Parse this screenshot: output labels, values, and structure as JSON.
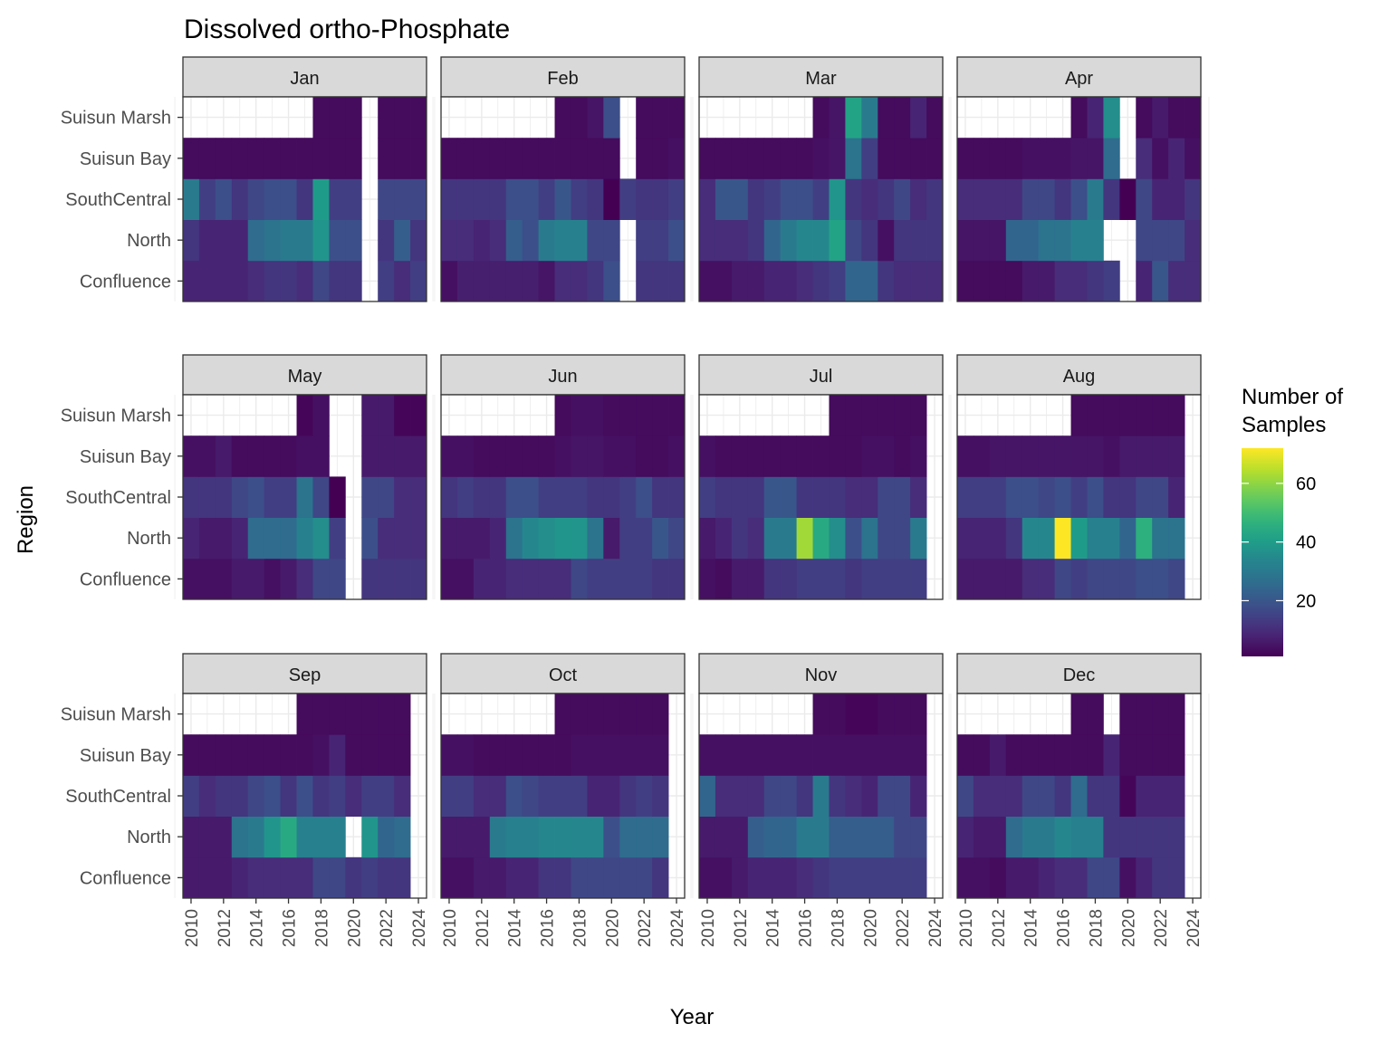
{
  "chart_data": {
    "type": "heatmap",
    "title": "Dissolved ortho-Phosphate",
    "xlabel": "Year",
    "ylabel": "Region",
    "x_ticks": [
      2010,
      2012,
      2014,
      2016,
      2018,
      2020,
      2022,
      2024
    ],
    "xlim": [
      2009.5,
      2024.5
    ],
    "regions": [
      "Confluence",
      "North",
      "SouthCentral",
      "Suisun Bay",
      "Suisun Marsh"
    ],
    "legend": {
      "title_lines": [
        "Number of",
        "Samples"
      ],
      "ticks": [
        20,
        40,
        60
      ],
      "range": [
        1,
        72
      ],
      "colormap": "viridis",
      "placement": "right"
    },
    "grid": true,
    "facets": [
      {
        "label": "Jan",
        "start_year": 2010,
        "rows": {
          "Suisun Marsh": [
            null,
            null,
            null,
            null,
            null,
            null,
            null,
            null,
            3,
            3,
            3,
            null,
            3,
            3,
            3
          ],
          "Suisun Bay": [
            3,
            3,
            3,
            3,
            3,
            3,
            3,
            3,
            3,
            3,
            3,
            null,
            3,
            3,
            3
          ],
          "SouthCentral": [
            30,
            14,
            18,
            12,
            16,
            18,
            18,
            12,
            40,
            14,
            14,
            null,
            16,
            16,
            16
          ],
          "North": [
            12,
            8,
            8,
            8,
            26,
            28,
            30,
            30,
            38,
            18,
            18,
            null,
            12,
            22,
            12
          ],
          "Confluence": [
            8,
            8,
            8,
            8,
            10,
            12,
            12,
            10,
            16,
            12,
            12,
            null,
            14,
            10,
            14
          ]
        }
      },
      {
        "label": "Feb",
        "start_year": 2010,
        "rows": {
          "Suisun Marsh": [
            null,
            null,
            null,
            null,
            null,
            null,
            null,
            3,
            3,
            5,
            18,
            null,
            3,
            3,
            3
          ],
          "Suisun Bay": [
            3,
            3,
            3,
            3,
            3,
            3,
            3,
            3,
            3,
            3,
            3,
            null,
            3,
            3,
            4
          ],
          "SouthCentral": [
            12,
            12,
            12,
            12,
            18,
            18,
            14,
            20,
            14,
            12,
            1,
            14,
            12,
            12,
            14
          ],
          "North": [
            10,
            10,
            8,
            10,
            22,
            18,
            30,
            32,
            32,
            16,
            16,
            null,
            14,
            14,
            18
          ],
          "Confluence": [
            4,
            7,
            7,
            7,
            7,
            7,
            5,
            10,
            10,
            12,
            18,
            null,
            12,
            12,
            12
          ]
        }
      },
      {
        "label": "Mar",
        "start_year": 2010,
        "rows": {
          "Suisun Marsh": [
            null,
            null,
            null,
            null,
            null,
            null,
            null,
            3,
            5,
            42,
            30,
            3,
            3,
            8,
            3
          ],
          "Suisun Bay": [
            3,
            3,
            3,
            3,
            3,
            3,
            3,
            4,
            5,
            28,
            14,
            3,
            3,
            3,
            3
          ],
          "SouthCentral": [
            10,
            20,
            20,
            12,
            14,
            18,
            18,
            14,
            38,
            12,
            10,
            12,
            16,
            10,
            12
          ],
          "North": [
            10,
            10,
            10,
            12,
            24,
            30,
            34,
            34,
            42,
            16,
            12,
            4,
            12,
            12,
            12
          ],
          "Confluence": [
            4,
            4,
            6,
            6,
            8,
            8,
            10,
            12,
            14,
            24,
            24,
            12,
            10,
            10,
            10
          ]
        }
      },
      {
        "label": "Apr",
        "start_year": 2010,
        "rows": {
          "Suisun Marsh": [
            null,
            null,
            null,
            null,
            null,
            null,
            null,
            3,
            8,
            36,
            null,
            3,
            6,
            3,
            3
          ],
          "Suisun Bay": [
            3,
            3,
            3,
            3,
            4,
            4,
            4,
            5,
            5,
            26,
            null,
            10,
            4,
            8,
            4
          ],
          "SouthCentral": [
            10,
            10,
            10,
            10,
            16,
            16,
            12,
            18,
            30,
            12,
            1,
            16,
            8,
            8,
            12
          ],
          "North": [
            5,
            5,
            5,
            24,
            24,
            28,
            28,
            32,
            32,
            null,
            null,
            16,
            16,
            16,
            10
          ],
          "Confluence": [
            3,
            3,
            3,
            3,
            6,
            6,
            10,
            10,
            12,
            14,
            null,
            8,
            20,
            10,
            10
          ]
        }
      },
      {
        "label": "May",
        "start_year": 2010,
        "rows": {
          "Suisun Marsh": [
            null,
            null,
            null,
            null,
            null,
            null,
            null,
            2,
            4,
            null,
            null,
            6,
            6,
            2,
            2
          ],
          "Suisun Bay": [
            4,
            4,
            6,
            3,
            3,
            3,
            3,
            4,
            4,
            null,
            null,
            6,
            6,
            6,
            6
          ],
          "SouthCentral": [
            12,
            12,
            12,
            16,
            18,
            14,
            14,
            28,
            16,
            1,
            null,
            16,
            16,
            10,
            10
          ],
          "North": [
            8,
            6,
            6,
            8,
            26,
            26,
            26,
            32,
            36,
            14,
            null,
            18,
            10,
            10,
            10
          ],
          "Confluence": [
            4,
            4,
            4,
            6,
            6,
            4,
            6,
            10,
            16,
            16,
            null,
            12,
            12,
            12,
            12
          ]
        }
      },
      {
        "label": "Jun",
        "start_year": 2010,
        "rows": {
          "Suisun Marsh": [
            null,
            null,
            null,
            null,
            null,
            null,
            null,
            3,
            4,
            4,
            3,
            3,
            3,
            3,
            3
          ],
          "Suisun Bay": [
            4,
            4,
            3,
            3,
            3,
            3,
            3,
            4,
            5,
            5,
            4,
            4,
            3,
            3,
            4
          ],
          "SouthCentral": [
            12,
            14,
            12,
            12,
            18,
            18,
            14,
            14,
            14,
            12,
            12,
            14,
            18,
            12,
            12
          ],
          "North": [
            6,
            6,
            6,
            8,
            28,
            34,
            36,
            38,
            38,
            28,
            6,
            14,
            14,
            20,
            16
          ],
          "Confluence": [
            4,
            4,
            8,
            8,
            10,
            10,
            10,
            10,
            16,
            14,
            14,
            14,
            14,
            12,
            12
          ]
        }
      },
      {
        "label": "Jul",
        "start_year": 2010,
        "rows": {
          "Suisun Marsh": [
            null,
            null,
            null,
            null,
            null,
            null,
            null,
            null,
            3,
            3,
            3,
            3,
            3,
            3,
            null
          ],
          "Suisun Bay": [
            4,
            3,
            3,
            3,
            3,
            3,
            3,
            3,
            3,
            3,
            4,
            4,
            3,
            4,
            null
          ],
          "SouthCentral": [
            14,
            12,
            12,
            12,
            20,
            20,
            12,
            12,
            12,
            10,
            10,
            16,
            16,
            10,
            null
          ],
          "North": [
            6,
            8,
            12,
            10,
            30,
            30,
            62,
            44,
            36,
            18,
            28,
            16,
            16,
            30,
            null
          ],
          "Confluence": [
            4,
            3,
            6,
            6,
            12,
            12,
            14,
            14,
            14,
            12,
            14,
            14,
            14,
            14,
            null
          ]
        }
      },
      {
        "label": "Aug",
        "start_year": 2010,
        "rows": {
          "Suisun Marsh": [
            null,
            null,
            null,
            null,
            null,
            null,
            null,
            3,
            3,
            3,
            3,
            3,
            3,
            3,
            null
          ],
          "Suisun Bay": [
            4,
            4,
            5,
            5,
            5,
            5,
            5,
            5,
            5,
            4,
            6,
            6,
            6,
            6,
            null
          ],
          "SouthCentral": [
            14,
            14,
            14,
            18,
            18,
            16,
            18,
            14,
            18,
            12,
            12,
            16,
            16,
            8,
            null
          ],
          "North": [
            8,
            8,
            8,
            12,
            34,
            34,
            72,
            40,
            32,
            32,
            24,
            46,
            28,
            28,
            null
          ],
          "Confluence": [
            6,
            6,
            6,
            6,
            10,
            10,
            16,
            14,
            16,
            16,
            16,
            18,
            18,
            16,
            null
          ]
        }
      },
      {
        "label": "Sep",
        "start_year": 2010,
        "rows": {
          "Suisun Marsh": [
            null,
            null,
            null,
            null,
            null,
            null,
            null,
            3,
            3,
            3,
            3,
            3,
            3,
            3,
            null
          ],
          "Suisun Bay": [
            3,
            3,
            3,
            3,
            3,
            3,
            3,
            3,
            4,
            8,
            3,
            3,
            3,
            3,
            null
          ],
          "SouthCentral": [
            14,
            10,
            12,
            12,
            16,
            18,
            12,
            18,
            12,
            14,
            10,
            14,
            14,
            10,
            null
          ],
          "North": [
            6,
            6,
            6,
            28,
            30,
            38,
            44,
            32,
            32,
            32,
            null,
            38,
            24,
            26,
            null
          ],
          "Confluence": [
            6,
            6,
            6,
            8,
            10,
            10,
            10,
            10,
            16,
            16,
            12,
            14,
            12,
            12,
            null
          ]
        }
      },
      {
        "label": "Oct",
        "start_year": 2010,
        "rows": {
          "Suisun Marsh": [
            null,
            null,
            null,
            null,
            null,
            null,
            null,
            3,
            3,
            3,
            3,
            3,
            3,
            3,
            null
          ],
          "Suisun Bay": [
            4,
            4,
            3,
            3,
            3,
            3,
            3,
            3,
            4,
            4,
            4,
            4,
            4,
            4,
            null
          ],
          "SouthCentral": [
            14,
            14,
            10,
            10,
            18,
            16,
            14,
            14,
            14,
            8,
            8,
            12,
            14,
            12,
            null
          ],
          "North": [
            6,
            6,
            6,
            30,
            32,
            32,
            34,
            34,
            34,
            34,
            18,
            26,
            26,
            26,
            null
          ],
          "Confluence": [
            4,
            4,
            6,
            6,
            8,
            8,
            12,
            12,
            16,
            16,
            16,
            16,
            16,
            12,
            null
          ]
        }
      },
      {
        "label": "Nov",
        "start_year": 2010,
        "rows": {
          "Suisun Marsh": [
            null,
            null,
            null,
            null,
            null,
            null,
            null,
            3,
            3,
            2,
            2,
            3,
            3,
            3,
            null
          ],
          "Suisun Bay": [
            4,
            4,
            4,
            4,
            4,
            4,
            4,
            4,
            4,
            4,
            4,
            4,
            4,
            4,
            null
          ],
          "SouthCentral": [
            24,
            10,
            10,
            10,
            16,
            16,
            12,
            30,
            12,
            10,
            8,
            16,
            16,
            8,
            null
          ],
          "North": [
            6,
            6,
            6,
            22,
            24,
            24,
            30,
            30,
            22,
            22,
            22,
            22,
            16,
            16,
            null
          ],
          "Confluence": [
            4,
            4,
            6,
            8,
            8,
            8,
            10,
            12,
            14,
            14,
            14,
            14,
            14,
            14,
            null
          ]
        }
      },
      {
        "label": "Dec",
        "start_year": 2010,
        "rows": {
          "Suisun Marsh": [
            null,
            null,
            null,
            null,
            null,
            null,
            null,
            3,
            3,
            null,
            3,
            3,
            3,
            3,
            null
          ],
          "Suisun Bay": [
            3,
            3,
            6,
            3,
            3,
            3,
            3,
            3,
            3,
            8,
            3,
            3,
            3,
            3,
            null
          ],
          "SouthCentral": [
            16,
            10,
            10,
            10,
            16,
            16,
            12,
            26,
            12,
            12,
            2,
            8,
            8,
            8,
            null
          ],
          "North": [
            8,
            6,
            6,
            26,
            30,
            30,
            34,
            32,
            32,
            12,
            12,
            12,
            12,
            12,
            null
          ],
          "Confluence": [
            4,
            4,
            3,
            6,
            6,
            8,
            10,
            10,
            16,
            16,
            4,
            8,
            12,
            12,
            null
          ]
        }
      }
    ]
  }
}
